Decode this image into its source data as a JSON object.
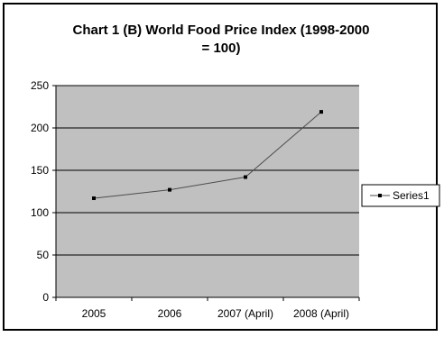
{
  "colors": {
    "plot_background": "#c0c0c0",
    "gridline": "#000000",
    "series_line": "#4d4d4d",
    "marker": "#000000"
  },
  "chart_data": {
    "type": "line",
    "title": "Chart 1 (B) World Food Price Index (1998-2000",
    "title_line2": "= 100)",
    "xlabel": "",
    "ylabel": "",
    "categories": [
      "2005",
      "2006",
      "2007 (April)",
      "2008 (April)"
    ],
    "series": [
      {
        "name": "Series1",
        "values": [
          117,
          127,
          142,
          219
        ]
      }
    ],
    "ylim": [
      0,
      250
    ],
    "yticks": [
      0,
      50,
      100,
      150,
      200,
      250
    ],
    "ytick_labels": [
      "0",
      "50",
      "100",
      "150",
      "200",
      "250"
    ],
    "grid": true,
    "legend_position": "right"
  }
}
